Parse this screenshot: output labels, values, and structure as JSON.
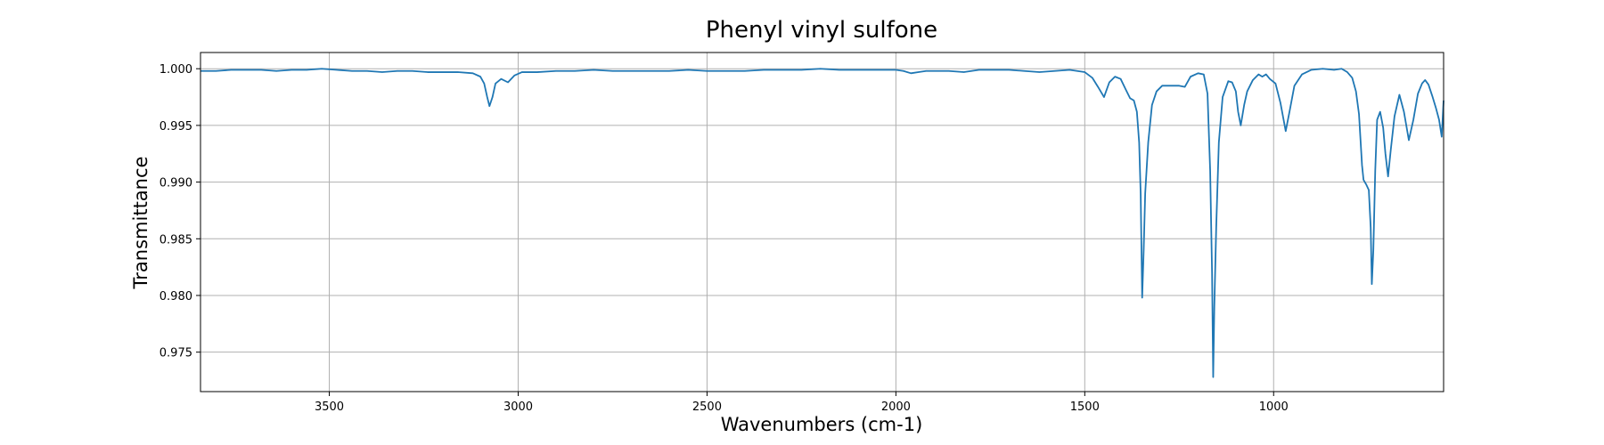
{
  "chart_data": {
    "type": "line",
    "title": "Phenyl vinyl sulfone",
    "x_label": "Wavenumbers (cm-1)",
    "y_label": "Transmittance",
    "x": [
      3841,
      3800,
      3760,
      3720,
      3680,
      3640,
      3600,
      3560,
      3520,
      3480,
      3440,
      3400,
      3360,
      3320,
      3280,
      3240,
      3200,
      3160,
      3120,
      3100,
      3090,
      3082,
      3076,
      3068,
      3060,
      3045,
      3027,
      3010,
      2990,
      2950,
      2900,
      2850,
      2800,
      2750,
      2700,
      2650,
      2600,
      2550,
      2500,
      2450,
      2400,
      2350,
      2300,
      2250,
      2200,
      2150,
      2100,
      2050,
      2000,
      1980,
      1960,
      1940,
      1920,
      1900,
      1860,
      1820,
      1780,
      1740,
      1700,
      1660,
      1620,
      1580,
      1540,
      1520,
      1500,
      1480,
      1465,
      1449,
      1435,
      1420,
      1405,
      1392,
      1380,
      1370,
      1362,
      1356,
      1352,
      1348,
      1344,
      1340,
      1332,
      1322,
      1310,
      1295,
      1280,
      1250,
      1235,
      1220,
      1200,
      1185,
      1175,
      1168,
      1163,
      1160,
      1157,
      1152,
      1145,
      1135,
      1120,
      1110,
      1100,
      1094,
      1087,
      1078,
      1070,
      1055,
      1040,
      1030,
      1020,
      1010,
      995,
      982,
      968,
      958,
      945,
      925,
      900,
      870,
      840,
      820,
      805,
      792,
      782,
      774,
      766,
      762,
      755,
      748,
      743,
      740,
      736,
      731,
      726,
      718,
      710,
      704,
      697,
      690,
      680,
      667,
      655,
      642,
      630,
      618,
      607,
      599,
      590,
      580,
      570,
      562,
      555,
      550
    ],
    "series": [
      {
        "name": "Phenyl vinyl sulfone",
        "color": "#1f77b4",
        "values": [
          0.9998,
          0.9998,
          0.9999,
          0.9999,
          0.9999,
          0.9998,
          0.9999,
          0.9999,
          1.0,
          0.9999,
          0.9998,
          0.9998,
          0.9997,
          0.9998,
          0.9998,
          0.9997,
          0.9997,
          0.9997,
          0.9996,
          0.9993,
          0.9987,
          0.9975,
          0.9967,
          0.9975,
          0.9987,
          0.9991,
          0.9988,
          0.9994,
          0.9997,
          0.9997,
          0.9998,
          0.9998,
          0.9999,
          0.9998,
          0.9998,
          0.9998,
          0.9998,
          0.9999,
          0.9998,
          0.9998,
          0.9998,
          0.9999,
          0.9999,
          0.9999,
          1.0,
          0.9999,
          0.9999,
          0.9999,
          0.9999,
          0.9998,
          0.9996,
          0.9997,
          0.9998,
          0.9998,
          0.9998,
          0.9997,
          0.9999,
          0.9999,
          0.9999,
          0.9998,
          0.9997,
          0.9998,
          0.9999,
          0.9998,
          0.9997,
          0.9992,
          0.9984,
          0.9975,
          0.9988,
          0.9993,
          0.9991,
          0.9982,
          0.9974,
          0.9972,
          0.9962,
          0.9935,
          0.989,
          0.9798,
          0.984,
          0.989,
          0.9935,
          0.9968,
          0.998,
          0.9985,
          0.9985,
          0.9985,
          0.9984,
          0.9993,
          0.9996,
          0.9995,
          0.9978,
          0.991,
          0.982,
          0.9728,
          0.979,
          0.986,
          0.9935,
          0.9975,
          0.9989,
          0.9988,
          0.998,
          0.9962,
          0.995,
          0.9968,
          0.998,
          0.999,
          0.9995,
          0.9993,
          0.9995,
          0.9991,
          0.9987,
          0.997,
          0.9945,
          0.9962,
          0.9985,
          0.9995,
          0.9999,
          1.0,
          0.9999,
          1.0,
          0.9997,
          0.9992,
          0.998,
          0.996,
          0.9915,
          0.9902,
          0.9898,
          0.9893,
          0.986,
          0.981,
          0.984,
          0.991,
          0.9955,
          0.9962,
          0.9948,
          0.9925,
          0.9905,
          0.9928,
          0.9958,
          0.9977,
          0.9962,
          0.9937,
          0.9955,
          0.9978,
          0.9987,
          0.999,
          0.9986,
          0.9976,
          0.9965,
          0.9955,
          0.994,
          0.9972
        ]
      }
    ],
    "xlim": [
      3841,
      550
    ],
    "ylim": [
      0.97152,
      1.00143
    ],
    "xticks": [
      3500,
      3000,
      2500,
      2000,
      1500,
      1000
    ],
    "yticks": [
      {
        "value": 1,
        "label": "1.000"
      },
      0.995,
      {
        "value": 0.99,
        "label": "0.990"
      },
      0.985,
      {
        "value": 0.98,
        "label": "0.980"
      },
      0.975
    ],
    "grid": true
  }
}
